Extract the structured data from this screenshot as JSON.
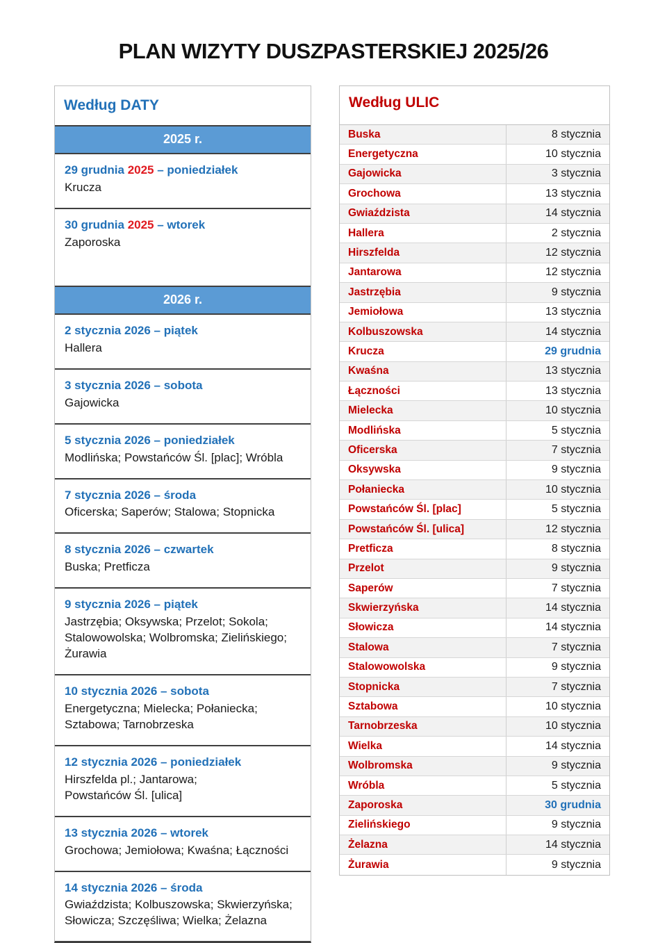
{
  "page": {
    "title": "PLAN WIZYTY DUSZPASTERSKIEJ 2025/26"
  },
  "colors": {
    "heading_blue": "#2271B8",
    "street_red": "#C00000",
    "year_red": "#E0191F",
    "banner_blue": "#5B9BD5",
    "row_stripe": "#F2F2F2"
  },
  "wg_daty": {
    "header": "Według DATY",
    "banner_2025": "2025 r.",
    "banner_2026": "2026 r.",
    "entries_2025": [
      {
        "date_pre": "29 grudnia ",
        "year": "2025",
        "date_post": " – poniedziałek",
        "streets": "Krucza",
        "year_red": true,
        "spacer": false
      },
      {
        "date_pre": "30 grudnia ",
        "year": "2025",
        "date_post": " – wtorek",
        "streets": "Zaporoska",
        "year_red": true,
        "spacer": true
      }
    ],
    "entries_2026": [
      {
        "date_pre": "2 stycznia ",
        "year": "2026",
        "date_post": " – piątek",
        "streets": "Hallera",
        "year_red": false,
        "spacer": false
      },
      {
        "date_pre": "3 stycznia ",
        "year": "2026",
        "date_post": " – sobota",
        "streets": "Gajowicka",
        "year_red": false,
        "spacer": false
      },
      {
        "date_pre": "5 stycznia ",
        "year": "2026",
        "date_post": " – poniedziałek",
        "streets": "Modlińska; Powstańców Śl. [plac]; Wróbla",
        "year_red": false,
        "spacer": false
      },
      {
        "date_pre": "7 stycznia ",
        "year": "2026",
        "date_post": " – środa",
        "streets": "Oficerska; Saperów; Stalowa; Stopnicka",
        "year_red": false,
        "spacer": false
      },
      {
        "date_pre": "8 stycznia ",
        "year": "2026",
        "date_post": " – czwartek",
        "streets": "Buska; Pretficza",
        "year_red": false,
        "spacer": false
      },
      {
        "date_pre": "9 stycznia ",
        "year": "2026",
        "date_post": " – piątek",
        "streets": "Jastrzębia; Oksywska; Przelot; Sokola;\nStalowowolska; Wolbromska; Zielińskiego;\nŻurawia",
        "year_red": false,
        "spacer": false
      },
      {
        "date_pre": "10 stycznia ",
        "year": "2026",
        "date_post": " – sobota",
        "streets": "Energetyczna; Mielecka; Połaniecka;\nSztabowa; Tarnobrzeska",
        "year_red": false,
        "spacer": false
      },
      {
        "date_pre": "12 stycznia ",
        "year": "2026",
        "date_post": " – poniedziałek",
        "streets": "Hirszfelda pl.; Jantarowa;\nPowstańców Śl. [ulica]",
        "year_red": false,
        "spacer": false
      },
      {
        "date_pre": "13 stycznia ",
        "year": "2026",
        "date_post": " – wtorek",
        "streets": "Grochowa; Jemiołowa; Kwaśna; Łączności",
        "year_red": false,
        "spacer": false
      },
      {
        "date_pre": "14 stycznia ",
        "year": "2026",
        "date_post": " – środa",
        "streets": "Gwiaździsta; Kolbuszowska; Skwierzyńska;\nSłowicza; Szczęśliwa; Wielka; Żelazna",
        "year_red": false,
        "spacer": false
      }
    ]
  },
  "wg_ulic": {
    "header": "Według ULIC",
    "rows": [
      {
        "street": "Buska",
        "date": "8 stycznia",
        "highlight": false
      },
      {
        "street": "Energetyczna",
        "date": "10 stycznia",
        "highlight": false
      },
      {
        "street": "Gajowicka",
        "date": "3 stycznia",
        "highlight": false
      },
      {
        "street": "Grochowa",
        "date": "13 stycznia",
        "highlight": false
      },
      {
        "street": "Gwiaździsta",
        "date": "14 stycznia",
        "highlight": false
      },
      {
        "street": "Hallera",
        "date": "2 stycznia",
        "highlight": false
      },
      {
        "street": "Hirszfelda",
        "date": "12 stycznia",
        "highlight": false
      },
      {
        "street": "Jantarowa",
        "date": "12 stycznia",
        "highlight": false
      },
      {
        "street": "Jastrzębia",
        "date": "9 stycznia",
        "highlight": false
      },
      {
        "street": "Jemiołowa",
        "date": "13 stycznia",
        "highlight": false
      },
      {
        "street": "Kolbuszowska",
        "date": "14 stycznia",
        "highlight": false
      },
      {
        "street": "Krucza",
        "date": "29 grudnia",
        "highlight": true
      },
      {
        "street": "Kwaśna",
        "date": "13 stycznia",
        "highlight": false
      },
      {
        "street": "Łączności",
        "date": "13 stycznia",
        "highlight": false
      },
      {
        "street": "Mielecka",
        "date": "10 stycznia",
        "highlight": false
      },
      {
        "street": "Modlińska",
        "date": "5 stycznia",
        "highlight": false
      },
      {
        "street": "Oficerska",
        "date": "7 stycznia",
        "highlight": false
      },
      {
        "street": "Oksywska",
        "date": "9 stycznia",
        "highlight": false
      },
      {
        "street": "Połaniecka",
        "date": "10 stycznia",
        "highlight": false
      },
      {
        "street": "Powstańców Śl. [plac]",
        "date": "5 stycznia",
        "highlight": false
      },
      {
        "street": "Powstańców Śl. [ulica]",
        "date": "12 stycznia",
        "highlight": false
      },
      {
        "street": "Pretficza",
        "date": "8 stycznia",
        "highlight": false
      },
      {
        "street": "Przelot",
        "date": "9 stycznia",
        "highlight": false
      },
      {
        "street": "Saperów",
        "date": "7 stycznia",
        "highlight": false
      },
      {
        "street": "Skwierzyńska",
        "date": "14 stycznia",
        "highlight": false
      },
      {
        "street": "Słowicza",
        "date": "14 stycznia",
        "highlight": false
      },
      {
        "street": "Stalowa",
        "date": "7 stycznia",
        "highlight": false
      },
      {
        "street": "Stalowowolska",
        "date": "9 stycznia",
        "highlight": false
      },
      {
        "street": "Stopnicka",
        "date": "7 stycznia",
        "highlight": false
      },
      {
        "street": "Sztabowa",
        "date": "10 stycznia",
        "highlight": false
      },
      {
        "street": "Tarnobrzeska",
        "date": "10 stycznia",
        "highlight": false
      },
      {
        "street": "Wielka",
        "date": "14 stycznia",
        "highlight": false
      },
      {
        "street": "Wolbromska",
        "date": "9 stycznia",
        "highlight": false
      },
      {
        "street": "Wróbla",
        "date": "5 stycznia",
        "highlight": false
      },
      {
        "street": "Zaporoska",
        "date": "30 grudnia",
        "highlight": true
      },
      {
        "street": "Zielińskiego",
        "date": "9 stycznia",
        "highlight": false
      },
      {
        "street": "Żelazna",
        "date": "14 stycznia",
        "highlight": false
      },
      {
        "street": "Żurawia",
        "date": "9 stycznia",
        "highlight": false
      }
    ]
  }
}
